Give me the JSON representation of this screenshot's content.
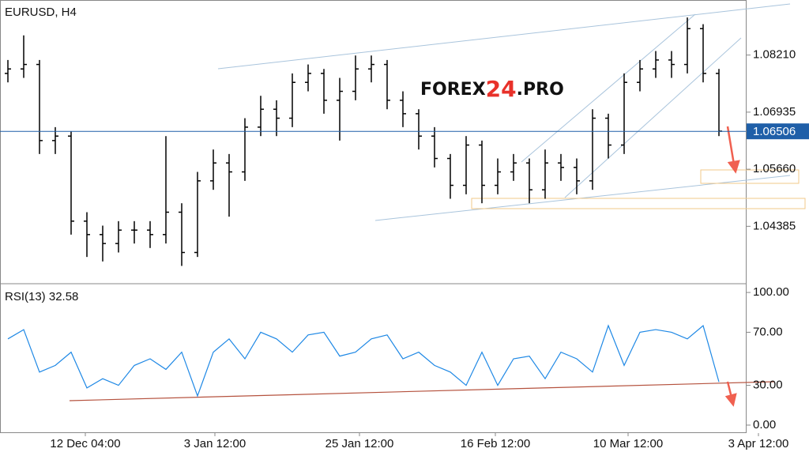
{
  "chart_data": [
    {
      "type": "ohlc",
      "title": "EURUSD, H4",
      "watermark": [
        "FOREX",
        "24",
        ".PRO"
      ],
      "color": "#000000",
      "open": [
        1.078,
        1.079,
        1.08,
        1.063,
        1.064,
        1.045,
        1.042,
        1.04,
        1.043,
        1.043,
        1.042,
        1.047,
        1.038,
        1.054,
        1.058,
        1.056,
        1.066,
        1.07,
        1.068,
        1.076,
        1.078,
        1.072,
        1.074,
        1.079,
        1.08,
        1.072,
        1.069,
        1.064,
        1.059,
        1.053,
        1.062,
        1.053,
        1.056,
        1.058,
        1.052,
        1.058,
        1.057,
        1.054,
        1.068,
        1.062,
        1.076,
        1.079,
        1.081,
        1.08,
        1.088,
        1.078
      ],
      "high": [
        1.081,
        1.0865,
        1.081,
        1.066,
        1.065,
        1.047,
        1.044,
        1.045,
        1.045,
        1.045,
        1.064,
        1.049,
        1.056,
        1.061,
        1.06,
        1.068,
        1.073,
        1.072,
        1.078,
        1.08,
        1.079,
        1.077,
        1.082,
        1.082,
        1.081,
        1.074,
        1.07,
        1.066,
        1.06,
        1.064,
        1.063,
        1.059,
        1.06,
        1.059,
        1.061,
        1.06,
        1.059,
        1.07,
        1.069,
        1.078,
        1.081,
        1.083,
        1.083,
        1.0905,
        1.089,
        1.079
      ],
      "low": [
        1.076,
        1.077,
        1.06,
        1.06,
        1.042,
        1.037,
        1.036,
        1.038,
        1.04,
        1.039,
        1.04,
        1.035,
        1.037,
        1.052,
        1.046,
        1.054,
        1.064,
        1.064,
        1.066,
        1.074,
        1.069,
        1.063,
        1.072,
        1.076,
        1.07,
        1.066,
        1.061,
        1.057,
        1.05,
        1.051,
        1.049,
        1.051,
        1.054,
        1.049,
        1.05,
        1.054,
        1.051,
        1.052,
        1.059,
        1.06,
        1.074,
        1.077,
        1.077,
        1.078,
        1.076,
        1.064
      ],
      "close": [
        1.079,
        1.08,
        1.063,
        1.064,
        1.045,
        1.042,
        1.04,
        1.043,
        1.043,
        1.042,
        1.047,
        1.038,
        1.054,
        1.058,
        1.056,
        1.066,
        1.07,
        1.068,
        1.076,
        1.078,
        1.072,
        1.074,
        1.079,
        1.08,
        1.072,
        1.069,
        1.064,
        1.059,
        1.053,
        1.062,
        1.053,
        1.056,
        1.058,
        1.052,
        1.058,
        1.057,
        1.054,
        1.068,
        1.062,
        1.076,
        1.079,
        1.081,
        1.08,
        1.088,
        1.078,
        1.0651
      ],
      "last_price": 1.06506,
      "ylim": [
        1.0312,
        1.0944
      ],
      "yticks": [
        {
          "value": 1.0821,
          "label": "1.08210"
        },
        {
          "value": 1.06935,
          "label": "1.06935"
        },
        {
          "value": 1.0566,
          "label": "1.05660"
        },
        {
          "value": 1.04385,
          "label": "1.04385"
        }
      ],
      "xlim": [
        -0.5,
        49.5
      ],
      "xticks": [
        {
          "value": 4.9,
          "label": "12 Dec 04:00"
        },
        {
          "value": 13.1,
          "label": "3 Jan 12:00"
        },
        {
          "value": 22.25,
          "label": "25 Jan 12:00"
        },
        {
          "value": 30.85,
          "label": "16 Feb 12:00"
        },
        {
          "value": 39.25,
          "label": "10 Mar 12:00"
        },
        {
          "value": 47.5,
          "label": "3 Apr 12:00"
        }
      ]
    },
    {
      "type": "line",
      "title": "RSI(13) 32.58",
      "color": "#1e88e5",
      "values": [
        65,
        72,
        40,
        45,
        55,
        28,
        35,
        30,
        45,
        50,
        42,
        55,
        22,
        55,
        65,
        50,
        70,
        65,
        55,
        68,
        70,
        52,
        55,
        65,
        68,
        50,
        55,
        45,
        40,
        30,
        55,
        30,
        50,
        52,
        35,
        55,
        50,
        40,
        75,
        45,
        70,
        72,
        70,
        65,
        75,
        32.58
      ],
      "ylim": [
        -6,
        106
      ],
      "yticks": [
        {
          "value": 100,
          "label": "100.00"
        },
        {
          "value": 70,
          "label": "70.00"
        },
        {
          "value": 30,
          "label": "30.00"
        },
        {
          "value": 0,
          "label": "0.00"
        }
      ]
    }
  ]
}
